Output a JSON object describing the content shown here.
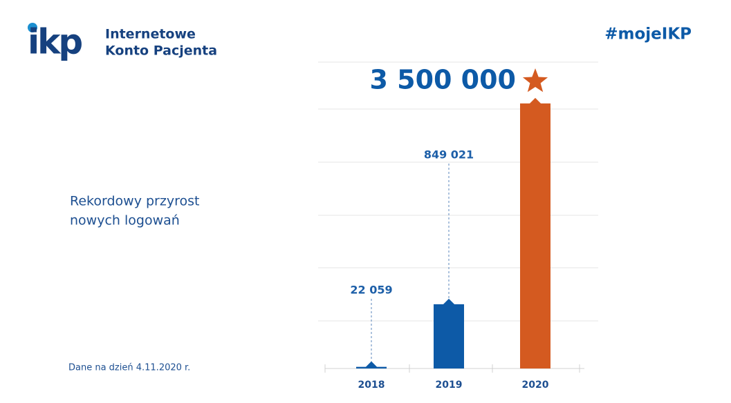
{
  "logo": {
    "mark": "ikp",
    "name_line1": "Internetowe",
    "name_line2": "Konto Pacjenta"
  },
  "hashtag": "#mojeIKP",
  "footnote": "Dane na dzień 4.11.2020 r.",
  "chart_data": {
    "type": "bar",
    "title_line1": "Rekordowy przyrost",
    "title_line2": "nowych logowań",
    "categories": [
      "2018",
      "2019",
      "2020"
    ],
    "values": [
      22059,
      849021,
      3500000
    ],
    "value_labels": [
      "22 059",
      "849 021",
      "3 500 000"
    ],
    "colors": [
      "#0d5aa7",
      "#0d5aa7",
      "#d45a20"
    ],
    "ylim": [
      0,
      4000000
    ]
  }
}
